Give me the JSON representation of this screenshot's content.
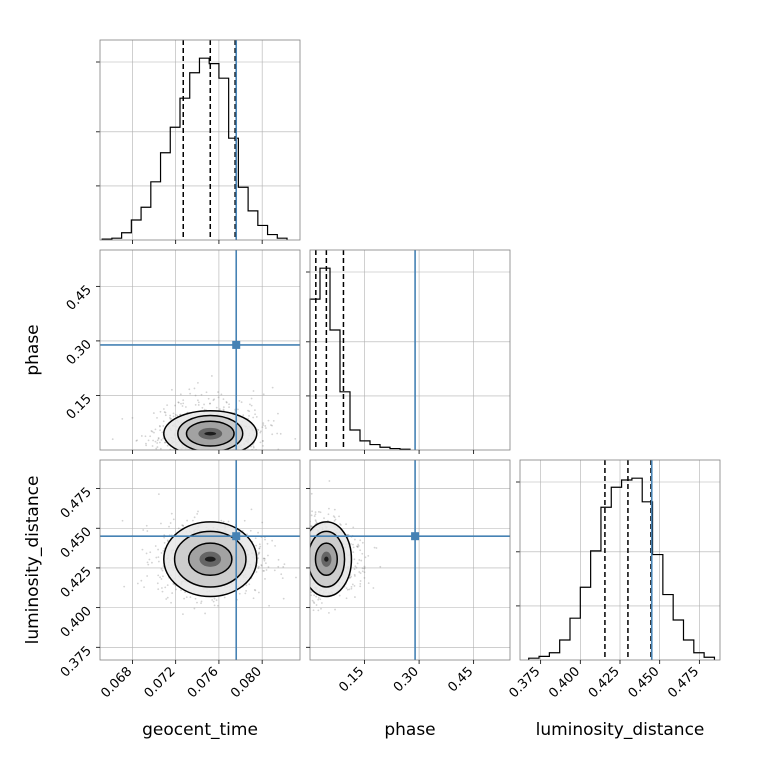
{
  "chart_data": {
    "type": "corner",
    "parameters": [
      "geocent_time",
      "phase",
      "luminosity_distance"
    ],
    "truth": {
      "geocent_time": 0.0776,
      "phase": 0.289,
      "luminosity_distance": 0.445
    },
    "colors": {
      "truth": "#4682b4",
      "hist": "#000000",
      "grid": "#b0b0b0",
      "scatter": "#808080"
    },
    "grid": true,
    "diagonal": [
      {
        "parameter": "geocent_time",
        "xlim": [
          0.065,
          0.0835
        ],
        "xticks": [
          0.068,
          0.072,
          0.076,
          0.08
        ],
        "xtick_labels": [
          "0.068",
          "0.072",
          "0.076",
          "0.080"
        ],
        "quantiles": [
          0.0727,
          0.0752,
          0.0775
        ],
        "bin_edges": [
          0.0652,
          0.0661,
          0.067,
          0.0679,
          0.0688,
          0.0697,
          0.0706,
          0.0715,
          0.0724,
          0.0733,
          0.0742,
          0.0751,
          0.076,
          0.0769,
          0.0778,
          0.0787,
          0.0796,
          0.0805,
          0.0814,
          0.0823
        ],
        "counts": [
          0.005,
          0.01,
          0.04,
          0.11,
          0.18,
          0.32,
          0.48,
          0.62,
          0.78,
          0.92,
          1.0,
          0.97,
          0.89,
          0.56,
          0.29,
          0.16,
          0.08,
          0.03,
          0.01
        ]
      },
      {
        "parameter": "phase",
        "xlim": [
          0.0,
          0.55
        ],
        "xticks": [
          0.15,
          0.3,
          0.45
        ],
        "xtick_labels": [
          "0.15",
          "0.30",
          "0.45"
        ],
        "quantiles": [
          0.016,
          0.045,
          0.092
        ],
        "bin_edges": [
          0.0,
          0.0275,
          0.055,
          0.0825,
          0.11,
          0.1375,
          0.165,
          0.1925,
          0.22,
          0.2475,
          0.275
        ],
        "counts": [
          0.83,
          1.0,
          0.66,
          0.32,
          0.11,
          0.05,
          0.03,
          0.015,
          0.008,
          0.004
        ]
      },
      {
        "parameter": "luminosity_distance",
        "xlim": [
          0.362,
          0.488
        ],
        "xticks": [
          0.375,
          0.4,
          0.425,
          0.45,
          0.475
        ],
        "xtick_labels": [
          "0.375",
          "0.400",
          "0.425",
          "0.450",
          "0.475"
        ],
        "quantiles": [
          0.4155,
          0.43,
          0.4445
        ],
        "bin_edges": [
          0.3675,
          0.374,
          0.3805,
          0.387,
          0.3935,
          0.4,
          0.4065,
          0.413,
          0.4195,
          0.426,
          0.4325,
          0.439,
          0.4455,
          0.452,
          0.4585,
          0.465,
          0.4715,
          0.478,
          0.4845
        ],
        "counts": [
          0.01,
          0.02,
          0.04,
          0.11,
          0.23,
          0.4,
          0.6,
          0.84,
          0.95,
          0.99,
          1.0,
          0.87,
          0.58,
          0.36,
          0.22,
          0.11,
          0.04,
          0.015
        ]
      }
    ],
    "pairs": [
      {
        "x": "geocent_time",
        "y": "phase",
        "xlim": [
          0.065,
          0.0835
        ],
        "ylim": [
          0.0,
          0.55
        ],
        "yticks": [
          0.15,
          0.3,
          0.45
        ],
        "ytick_labels": [
          "0.15",
          "0.30",
          "0.45"
        ],
        "center": [
          0.0752,
          0.045
        ],
        "spread": [
          0.0024,
          0.045
        ],
        "contour_levels": [
          [
            0.00055,
            0.005
          ],
          [
            0.0011,
            0.016
          ],
          [
            0.0022,
            0.034
          ],
          [
            0.003,
            0.05
          ],
          [
            0.0043,
            0.063
          ]
        ]
      },
      {
        "x": "geocent_time",
        "y": "luminosity_distance",
        "xlim": [
          0.065,
          0.0835
        ],
        "ylim": [
          0.367,
          0.493
        ],
        "yticks": [
          0.375,
          0.4,
          0.425,
          0.45,
          0.475
        ],
        "ytick_labels": [
          "0.375",
          "0.400",
          "0.425",
          "0.450",
          "0.475"
        ],
        "center": [
          0.0752,
          0.4305
        ],
        "spread": [
          0.0024,
          0.0115
        ],
        "contour_levels": [
          [
            0.0005,
            0.0016
          ],
          [
            0.001,
            0.0048
          ],
          [
            0.002,
            0.0101
          ],
          [
            0.0033,
            0.0175
          ],
          [
            0.0043,
            0.0235
          ]
        ]
      },
      {
        "x": "phase",
        "y": "luminosity_distance",
        "xlim": [
          0.0,
          0.55
        ],
        "ylim": [
          0.367,
          0.493
        ],
        "center": [
          0.045,
          0.4305
        ],
        "spread": [
          0.045,
          0.0115
        ],
        "contour_levels": [
          [
            0.006,
            0.0016
          ],
          [
            0.014,
            0.0048
          ],
          [
            0.03,
            0.0101
          ],
          [
            0.05,
            0.0175
          ],
          [
            0.069,
            0.0235
          ]
        ]
      }
    ]
  }
}
